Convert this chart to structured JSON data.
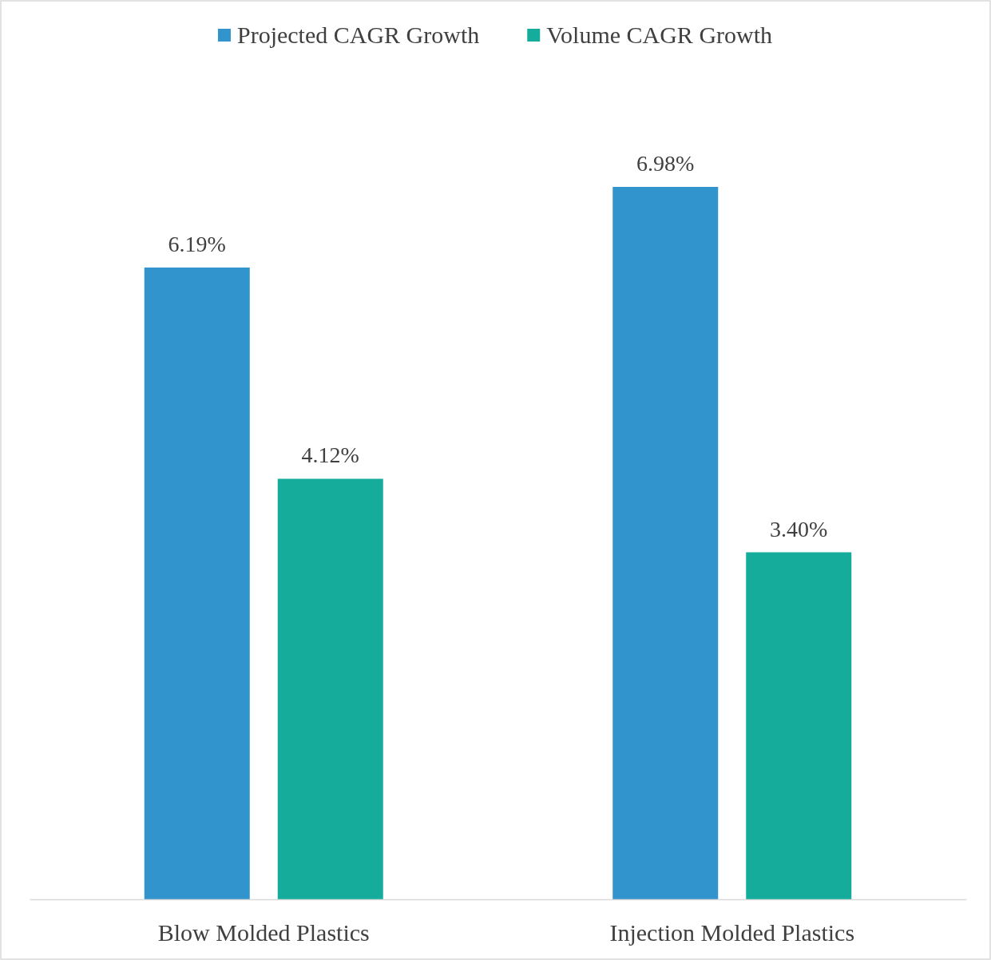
{
  "chart_data": {
    "type": "bar",
    "categories": [
      "Blow Molded Plastics",
      "Injection Molded Plastics"
    ],
    "series": [
      {
        "name": "Projected CAGR Growth",
        "color": "#3294cd",
        "values": [
          6.19,
          6.98
        ],
        "value_labels": [
          "6.19%",
          "6.98%"
        ]
      },
      {
        "name": "Volume CAGR Growth",
        "color": "#16ac9c",
        "values": [
          4.12,
          3.4
        ],
        "value_labels": [
          "4.12%",
          "3.40%"
        ]
      }
    ],
    "legend": "top",
    "tick_labels": "x"
  }
}
